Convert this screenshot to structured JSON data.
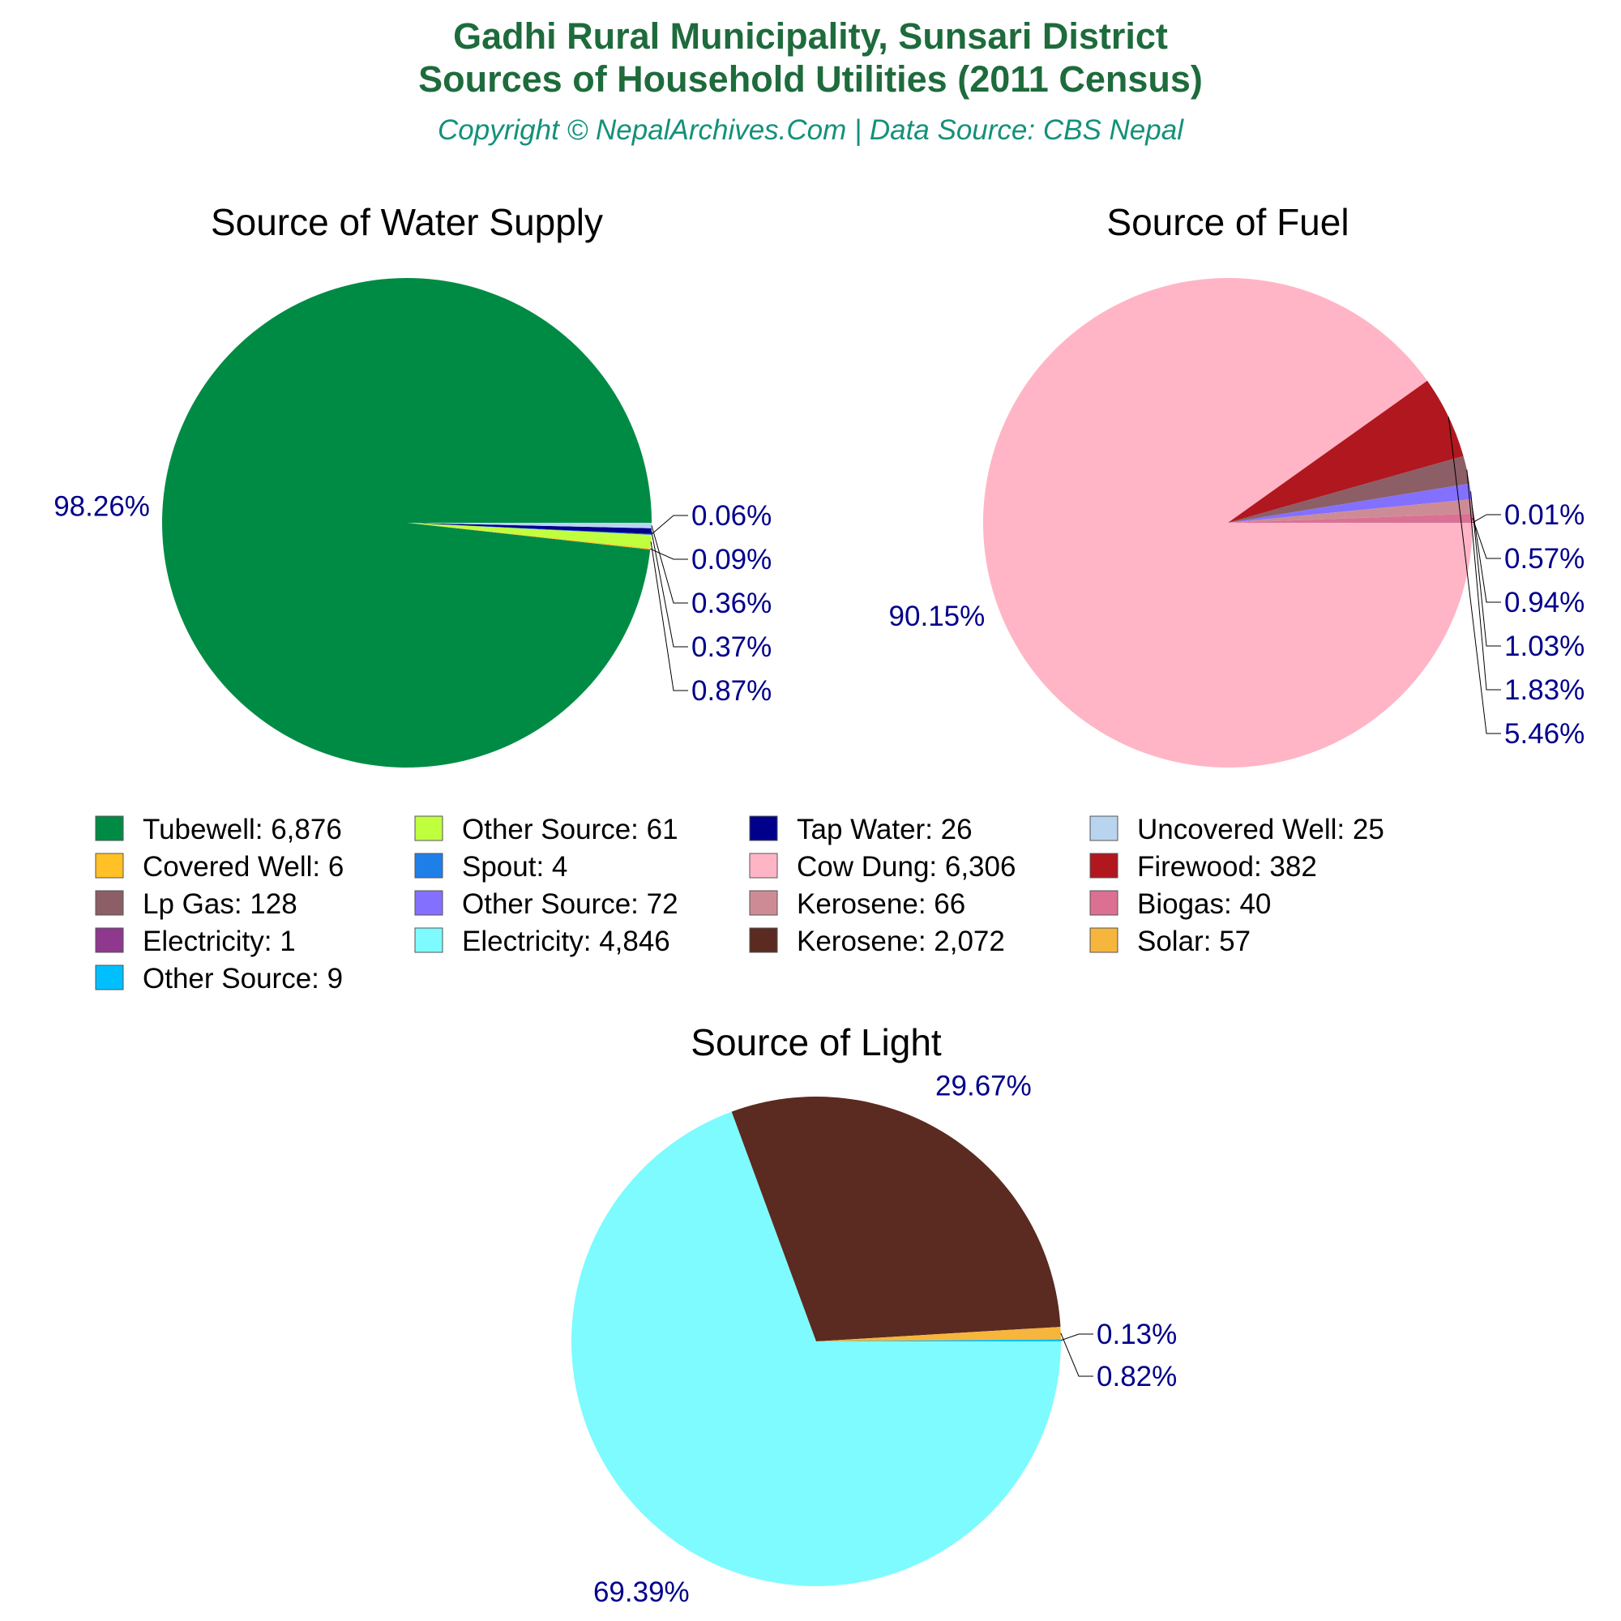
{
  "header": {
    "title_line1": "Gadhi Rural Municipality, Sunsari District",
    "title_line2": "Sources of Household Utilities (2011 Census)",
    "subtitle": "Copyright © NepalArchives.Com | Data Source: CBS Nepal",
    "title_color": "#1e6b3c",
    "subtitle_color": "#14917a"
  },
  "chart_data": [
    {
      "type": "pie",
      "title": "Source of Water Supply",
      "slices": [
        {
          "label": "Tubewell",
          "value": 6876,
          "percent_label": "98.26%",
          "color": "#008b45"
        },
        {
          "label": "Covered Well",
          "value": 6,
          "percent_label": "0.09%",
          "color": "#ffc125"
        },
        {
          "label": "Other Source",
          "value": 61,
          "percent_label": "0.87%",
          "color": "#c0ff3e"
        },
        {
          "label": "Spout",
          "value": 4,
          "percent_label": "0.06%",
          "color": "#1e7fe8"
        },
        {
          "label": "Tap Water",
          "value": 26,
          "percent_label": "0.37%",
          "color": "#00008b"
        },
        {
          "label": "Uncovered Well",
          "value": 25,
          "percent_label": "0.36%",
          "color": "#b8d4ef"
        }
      ]
    },
    {
      "type": "pie",
      "title": "Source of Fuel",
      "slices": [
        {
          "label": "Cow Dung",
          "value": 6306,
          "percent_label": "90.15%",
          "color": "#ffb5c5"
        },
        {
          "label": "Firewood",
          "value": 382,
          "percent_label": "5.46%",
          "color": "#b0171f"
        },
        {
          "label": "Lp Gas",
          "value": 128,
          "percent_label": "1.83%",
          "color": "#8b5f65"
        },
        {
          "label": "Other Source",
          "value": 72,
          "percent_label": "1.03%",
          "color": "#8470ff"
        },
        {
          "label": "Kerosene",
          "value": 66,
          "percent_label": "0.94%",
          "color": "#cd8c95"
        },
        {
          "label": "Biogas",
          "value": 40,
          "percent_label": "0.57%",
          "color": "#db7093"
        },
        {
          "label": "Electricity",
          "value": 1,
          "percent_label": "0.01%",
          "color": "#8e388e"
        }
      ]
    },
    {
      "type": "pie",
      "title": "Source of Light",
      "slices": [
        {
          "label": "Electricity",
          "value": 4846,
          "percent_label": "69.39%",
          "color": "#7dfbff"
        },
        {
          "label": "Kerosene",
          "value": 2072,
          "percent_label": "29.67%",
          "color": "#5b2a20"
        },
        {
          "label": "Solar",
          "value": 57,
          "percent_label": "0.82%",
          "color": "#f6b53c"
        },
        {
          "label": "Other Source",
          "value": 9,
          "percent_label": "0.13%",
          "color": "#00bfff"
        }
      ]
    }
  ],
  "legend": [
    {
      "label": "Tubewell: 6,876",
      "color": "#008b45"
    },
    {
      "label": "Other Source: 61",
      "color": "#c0ff3e"
    },
    {
      "label": "Tap Water: 26",
      "color": "#00008b"
    },
    {
      "label": "Uncovered Well: 25",
      "color": "#b8d4ef"
    },
    {
      "label": "Covered Well: 6",
      "color": "#ffc125"
    },
    {
      "label": "Spout: 4",
      "color": "#1e7fe8"
    },
    {
      "label": "Cow Dung: 6,306",
      "color": "#ffb5c5"
    },
    {
      "label": "Firewood: 382",
      "color": "#b0171f"
    },
    {
      "label": "Lp Gas: 128",
      "color": "#8b5f65"
    },
    {
      "label": "Other Source: 72",
      "color": "#8470ff"
    },
    {
      "label": "Kerosene: 66",
      "color": "#cd8c95"
    },
    {
      "label": "Biogas: 40",
      "color": "#db7093"
    },
    {
      "label": "Electricity: 1",
      "color": "#8e388e"
    },
    {
      "label": "Electricity: 4,846",
      "color": "#7dfbff"
    },
    {
      "label": "Kerosene: 2,072",
      "color": "#5b2a20"
    },
    {
      "label": "Solar: 57",
      "color": "#f6b53c"
    },
    {
      "label": "Other Source: 9",
      "color": "#00bfff"
    }
  ]
}
